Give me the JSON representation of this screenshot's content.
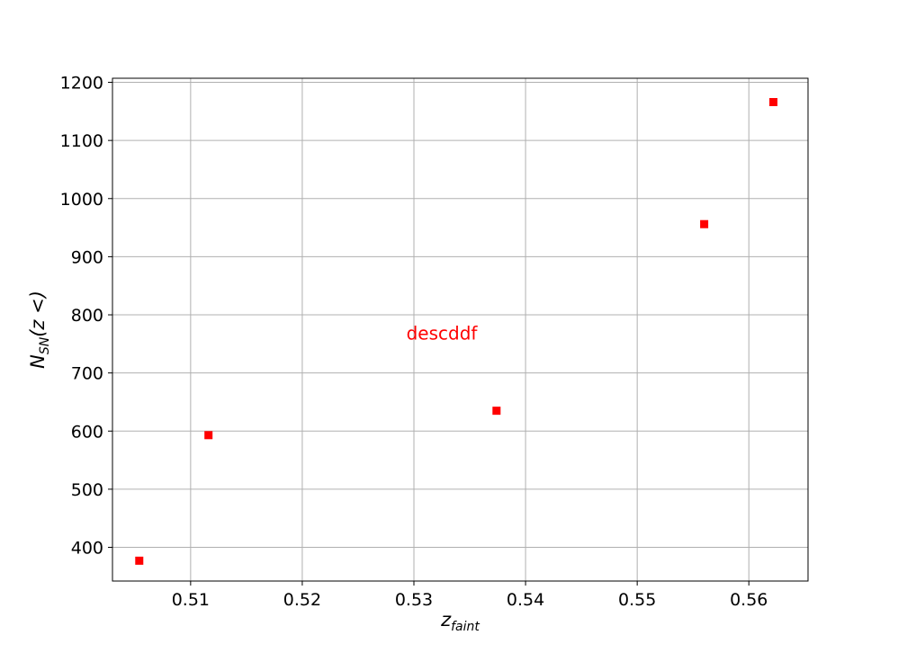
{
  "chart_data": {
    "type": "scatter",
    "series": [
      {
        "x": [
          0.5054,
          0.5116,
          0.5374,
          0.556,
          0.5622
        ],
        "y": [
          377,
          593,
          635,
          956,
          1166
        ],
        "color": "#ff0000",
        "marker": "square"
      }
    ],
    "annotation": {
      "text": "descddf",
      "x": 0.5325,
      "y": 768,
      "color": "#ff0000"
    },
    "xlabel": {
      "main": "z",
      "sub": "faint"
    },
    "ylabel": {
      "main": "N",
      "sub": "SN",
      "tail": "(z <)"
    },
    "xlim": [
      0.503,
      0.5653
    ],
    "ylim": [
      342,
      1207
    ],
    "xticks": [
      0.51,
      0.52,
      0.53,
      0.54,
      0.55,
      0.56
    ],
    "xtick_labels": [
      "0.51",
      "0.52",
      "0.53",
      "0.54",
      "0.55",
      "0.56"
    ],
    "yticks": [
      400,
      500,
      600,
      700,
      800,
      900,
      1000,
      1100,
      1200
    ],
    "ytick_labels": [
      "400",
      "500",
      "600",
      "700",
      "800",
      "900",
      "1000",
      "1100",
      "1200"
    ],
    "grid": true
  }
}
